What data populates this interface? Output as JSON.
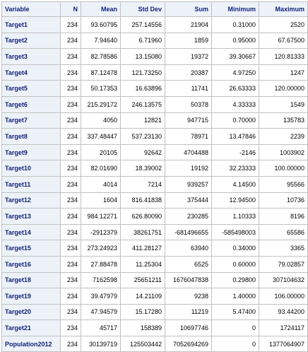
{
  "table": {
    "headers": [
      "Variable",
      "N",
      "Mean",
      "Std Dev",
      "Sum",
      "Minimum",
      "Maximum"
    ],
    "rows": [
      [
        "Target1",
        "234",
        "93.60795",
        "257.14556",
        "21904",
        "0.31000",
        "2520"
      ],
      [
        "Target2",
        "234",
        "7.94640",
        "6.71960",
        "1859",
        "0.95000",
        "67.67500"
      ],
      [
        "Target3",
        "234",
        "82.78586",
        "13.15080",
        "19372",
        "39.30667",
        "120.81333"
      ],
      [
        "Target4",
        "234",
        "87.12478",
        "121.73250",
        "20387",
        "4.97250",
        "1247"
      ],
      [
        "Target5",
        "234",
        "50.17353",
        "16.63896",
        "11741",
        "26.63333",
        "120.00000"
      ],
      [
        "Target6",
        "234",
        "215.29172",
        "246.13575",
        "50378",
        "4.33333",
        "1549"
      ],
      [
        "Target7",
        "234",
        "4050",
        "12821",
        "947715",
        "0.70000",
        "135783"
      ],
      [
        "Target8",
        "234",
        "337.48447",
        "537.23130",
        "78971",
        "13.47846",
        "2239"
      ],
      [
        "Target9",
        "234",
        "20105",
        "92642",
        "4704488",
        "-2146",
        "1003902"
      ],
      [
        "Target10",
        "234",
        "82.01690",
        "18.39002",
        "19192",
        "32.23333",
        "100.00000"
      ],
      [
        "Target11",
        "234",
        "4014",
        "7214",
        "939257",
        "4.14500",
        "95566"
      ],
      [
        "Target12",
        "234",
        "1604",
        "816.41838",
        "375444",
        "12.94500",
        "10736"
      ],
      [
        "Target13",
        "234",
        "984.12271",
        "626.80090",
        "230285",
        "1.10333",
        "8196"
      ],
      [
        "Target14",
        "234",
        "-2912379",
        "38261751",
        "-681496655",
        "-585498003",
        "65586"
      ],
      [
        "Target15",
        "234",
        "273.24923",
        "411.28127",
        "63940",
        "0.34000",
        "3365"
      ],
      [
        "Target16",
        "234",
        "27.88478",
        "11.25304",
        "6525",
        "0.60000",
        "79.02857"
      ],
      [
        "Target18",
        "234",
        "7162598",
        "25651211",
        "1676047838",
        "0.29800",
        "307104632"
      ],
      [
        "Target19",
        "234",
        "39.47979",
        "14.21109",
        "9238",
        "1.40000",
        "106.00000"
      ],
      [
        "Target20",
        "234",
        "47.94579",
        "15.17280",
        "11219",
        "5.47400",
        "93.44200"
      ],
      [
        "Target21",
        "234",
        "45717",
        "158389",
        "10697746",
        "0",
        "1724117"
      ],
      [
        "Population2012",
        "234",
        "30139719",
        "125503442",
        "7052694269",
        "0",
        "1377064907"
      ]
    ]
  }
}
